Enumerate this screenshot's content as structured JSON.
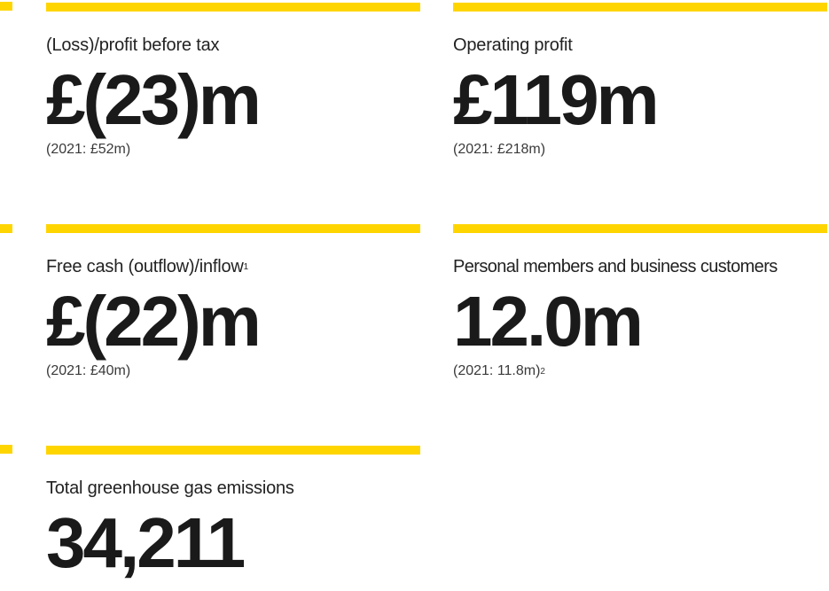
{
  "colors": {
    "accent_bar": "#ffd500",
    "text": "#1a1a1a"
  },
  "kpis": [
    {
      "label": "(Loss)/profit before tax",
      "label_note": "",
      "value": "£(23)m",
      "comparison": "(2021: £52m)",
      "comparison_note": ""
    },
    {
      "label": "Operating profit",
      "label_note": "",
      "value": "£119m",
      "comparison": "(2021: £218m)",
      "comparison_note": ""
    },
    {
      "label": "Free cash (outflow)/inflow",
      "label_note": "1",
      "value": "£(22)m",
      "comparison": "(2021: £40m)",
      "comparison_note": ""
    },
    {
      "label": "Personal members and business customers",
      "label_note": "",
      "value": "12.0m",
      "comparison": "(2021: 11.8m)",
      "comparison_note": "2"
    },
    {
      "label": "Total greenhouse gas emissions",
      "label_note": "",
      "value": "34,211",
      "comparison": "",
      "comparison_note": ""
    }
  ]
}
